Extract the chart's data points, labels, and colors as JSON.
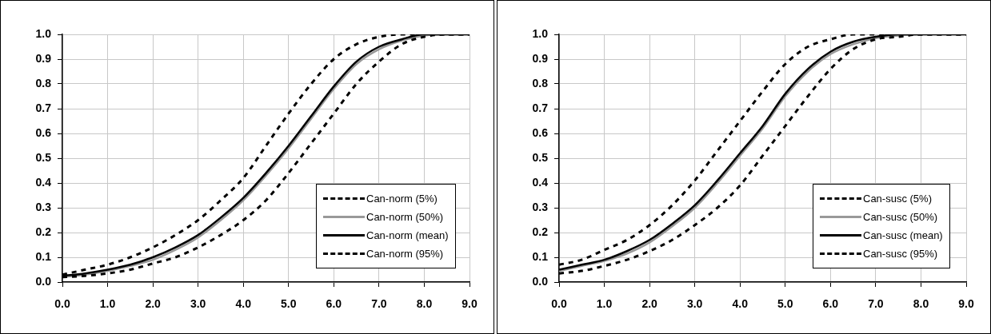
{
  "chart_data": [
    {
      "type": "line",
      "x": [
        0,
        0.5,
        1,
        1.5,
        2,
        2.5,
        3,
        3.5,
        4,
        4.5,
        5,
        5.5,
        6,
        6.5,
        7,
        7.5,
        8,
        8.5,
        9
      ],
      "xlim": [
        0,
        9
      ],
      "xticks": [
        {
          "value": 0,
          "label": "0.0"
        },
        {
          "value": 1,
          "label": "1.0"
        },
        {
          "value": 2,
          "label": "2.0"
        },
        {
          "value": 3,
          "label": "3.0"
        },
        {
          "value": 4,
          "label": "4.0"
        },
        {
          "value": 5,
          "label": "5.0"
        },
        {
          "value": 6,
          "label": "6.0"
        },
        {
          "value": 7,
          "label": "7.0"
        },
        {
          "value": 8,
          "label": "8.0"
        },
        {
          "value": 9,
          "label": "9.0"
        }
      ],
      "ylim": [
        0,
        1
      ],
      "yticks": [
        {
          "value": 0,
          "label": "0.0"
        },
        {
          "value": 0.1,
          "label": "0.1"
        },
        {
          "value": 0.2,
          "label": "0.2"
        },
        {
          "value": 0.3,
          "label": "0.3"
        },
        {
          "value": 0.4,
          "label": "0.4"
        },
        {
          "value": 0.5,
          "label": "0.5"
        },
        {
          "value": 0.6,
          "label": "0.6"
        },
        {
          "value": 0.7,
          "label": "0.7"
        },
        {
          "value": 0.8,
          "label": "0.8"
        },
        {
          "value": 0.9,
          "label": "0.9"
        },
        {
          "value": 1,
          "label": "1.0"
        }
      ],
      "grid": true,
      "legend": "bottom right",
      "marker": "none",
      "series": [
        {
          "name": "Can-norm (5%)",
          "color": "#000000",
          "line_style": "dashed",
          "values": [
            0.03,
            0.05,
            0.07,
            0.1,
            0.14,
            0.19,
            0.25,
            0.33,
            0.42,
            0.55,
            0.68,
            0.8,
            0.9,
            0.96,
            0.99,
            1,
            1,
            1,
            1
          ]
        },
        {
          "name": "Can-norm (50%)",
          "color": "#999999",
          "line_style": "solid",
          "values": [
            0.02,
            0.03,
            0.045,
            0.065,
            0.09,
            0.13,
            0.18,
            0.25,
            0.33,
            0.43,
            0.54,
            0.66,
            0.78,
            0.88,
            0.94,
            0.975,
            0.995,
            1,
            1
          ]
        },
        {
          "name": "Can-norm (mean)",
          "color": "#000000",
          "line_style": "solid",
          "values": [
            0.025,
            0.035,
            0.05,
            0.07,
            0.1,
            0.14,
            0.19,
            0.26,
            0.34,
            0.44,
            0.55,
            0.67,
            0.79,
            0.89,
            0.95,
            0.98,
            1,
            1,
            1
          ]
        },
        {
          "name": "Can-norm (95%)",
          "color": "#000000",
          "line_style": "dashed",
          "values": [
            0.02,
            0.025,
            0.035,
            0.05,
            0.075,
            0.1,
            0.14,
            0.19,
            0.25,
            0.33,
            0.44,
            0.56,
            0.68,
            0.8,
            0.89,
            0.96,
            0.99,
            1,
            1
          ]
        }
      ]
    },
    {
      "type": "line",
      "x": [
        0,
        0.5,
        1,
        1.5,
        2,
        2.5,
        3,
        3.5,
        4,
        4.5,
        5,
        5.5,
        6,
        6.5,
        7,
        7.5,
        8,
        8.5,
        9
      ],
      "xlim": [
        0,
        9
      ],
      "xticks": [
        {
          "value": 0,
          "label": "0.0"
        },
        {
          "value": 1,
          "label": "1.0"
        },
        {
          "value": 2,
          "label": "2.0"
        },
        {
          "value": 3,
          "label": "3.0"
        },
        {
          "value": 4,
          "label": "4.0"
        },
        {
          "value": 5,
          "label": "5.0"
        },
        {
          "value": 6,
          "label": "6.0"
        },
        {
          "value": 7,
          "label": "7.0"
        },
        {
          "value": 8,
          "label": "8.0"
        },
        {
          "value": 9,
          "label": "9.0"
        }
      ],
      "ylim": [
        0,
        1
      ],
      "yticks": [
        {
          "value": 0,
          "label": "0.0"
        },
        {
          "value": 0.1,
          "label": "0.1"
        },
        {
          "value": 0.2,
          "label": "0.2"
        },
        {
          "value": 0.3,
          "label": "0.3"
        },
        {
          "value": 0.4,
          "label": "0.4"
        },
        {
          "value": 0.5,
          "label": "0.5"
        },
        {
          "value": 0.6,
          "label": "0.6"
        },
        {
          "value": 0.7,
          "label": "0.7"
        },
        {
          "value": 0.8,
          "label": "0.8"
        },
        {
          "value": 0.9,
          "label": "0.9"
        },
        {
          "value": 1,
          "label": "1.0"
        }
      ],
      "grid": true,
      "legend": "bottom right",
      "marker": "none",
      "series": [
        {
          "name": "Can-susc (5%)",
          "color": "#000000",
          "line_style": "dashed",
          "values": [
            0.07,
            0.09,
            0.13,
            0.17,
            0.23,
            0.31,
            0.41,
            0.53,
            0.65,
            0.77,
            0.88,
            0.95,
            0.98,
            1,
            1,
            1,
            1,
            1,
            1
          ]
        },
        {
          "name": "Can-susc (50%)",
          "color": "#999999",
          "line_style": "solid",
          "values": [
            0.045,
            0.065,
            0.085,
            0.115,
            0.16,
            0.225,
            0.3,
            0.4,
            0.51,
            0.62,
            0.75,
            0.85,
            0.92,
            0.96,
            0.985,
            0.995,
            1,
            1,
            1
          ]
        },
        {
          "name": "Can-susc (mean)",
          "color": "#000000",
          "line_style": "solid",
          "values": [
            0.05,
            0.07,
            0.09,
            0.125,
            0.17,
            0.235,
            0.31,
            0.41,
            0.52,
            0.63,
            0.76,
            0.86,
            0.93,
            0.97,
            0.99,
            1,
            1,
            1,
            1
          ]
        },
        {
          "name": "Can-susc (95%)",
          "color": "#000000",
          "line_style": "dashed",
          "values": [
            0.035,
            0.045,
            0.065,
            0.09,
            0.125,
            0.17,
            0.23,
            0.3,
            0.39,
            0.51,
            0.63,
            0.75,
            0.86,
            0.94,
            0.98,
            0.99,
            1,
            1,
            1
          ]
        }
      ]
    }
  ]
}
